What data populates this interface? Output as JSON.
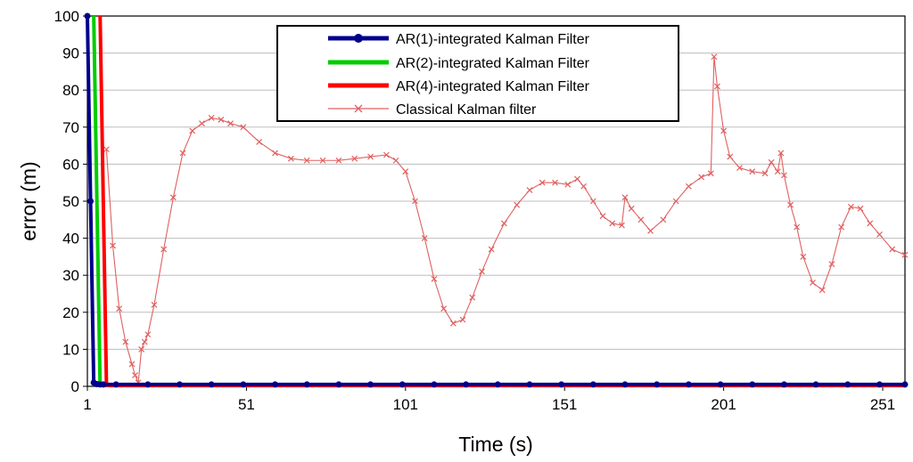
{
  "chart_data": {
    "type": "line",
    "title": "",
    "xlabel": "Time (s)",
    "ylabel": "error (m)",
    "xlim": [
      1,
      258
    ],
    "ylim": [
      0,
      100
    ],
    "xticks": [
      1,
      51,
      101,
      151,
      201,
      251
    ],
    "yticks": [
      0,
      10,
      20,
      30,
      40,
      50,
      60,
      70,
      80,
      90,
      100
    ],
    "grid": "horizontal",
    "legend_position": "top-center",
    "series": [
      {
        "name": "AR(1)-integrated Kalman Filter",
        "color": "#00008B",
        "style": "thick-line-dot-markers",
        "x": [
          1,
          2,
          3,
          4,
          5,
          6,
          10,
          20,
          30,
          40,
          50,
          60,
          70,
          80,
          90,
          100,
          110,
          120,
          130,
          140,
          150,
          160,
          170,
          180,
          190,
          200,
          210,
          220,
          230,
          240,
          250,
          258
        ],
        "y": [
          100,
          50,
          1,
          0.6,
          0.5,
          0.5,
          0.5,
          0.5,
          0.5,
          0.5,
          0.5,
          0.5,
          0.5,
          0.5,
          0.5,
          0.5,
          0.5,
          0.5,
          0.5,
          0.5,
          0.5,
          0.5,
          0.5,
          0.5,
          0.5,
          0.5,
          0.5,
          0.5,
          0.5,
          0.5,
          0.5,
          0.5
        ]
      },
      {
        "name": "AR(2)-integrated Kalman Filter",
        "color": "#00CC00",
        "style": "thick-line",
        "x": [
          3,
          4,
          5,
          6,
          10,
          20,
          40,
          60,
          80,
          100,
          120,
          140,
          160,
          180,
          200,
          220,
          240,
          258
        ],
        "y": [
          100,
          50,
          0.3,
          0.2,
          0.2,
          0.2,
          0.2,
          0.2,
          0.2,
          0.2,
          0.2,
          0.2,
          0.2,
          0.2,
          0.2,
          0.2,
          0.2,
          0.2
        ]
      },
      {
        "name": "AR(4)-integrated Kalman Filter",
        "color": "#FF0000",
        "style": "thick-line",
        "x": [
          5,
          6,
          7,
          8,
          10,
          20,
          40,
          60,
          80,
          100,
          120,
          140,
          160,
          180,
          200,
          220,
          240,
          258
        ],
        "y": [
          100,
          50,
          0.3,
          0.2,
          0.2,
          0.2,
          0.2,
          0.2,
          0.2,
          0.2,
          0.2,
          0.2,
          0.2,
          0.2,
          0.2,
          0.2,
          0.2,
          0.2
        ]
      },
      {
        "name": "Classical Kalman filter",
        "color": "#E06060",
        "style": "thin-line-x-markers",
        "x": [
          7,
          9,
          11,
          13,
          15,
          16,
          17,
          18,
          19,
          20,
          22,
          25,
          28,
          31,
          34,
          37,
          40,
          43,
          46,
          50,
          55,
          60,
          65,
          70,
          75,
          80,
          85,
          90,
          95,
          98,
          101,
          104,
          107,
          110,
          113,
          116,
          119,
          122,
          125,
          128,
          132,
          136,
          140,
          144,
          148,
          152,
          155,
          157,
          160,
          163,
          166,
          169,
          170,
          172,
          175,
          178,
          182,
          186,
          190,
          194,
          197,
          198,
          199,
          201,
          203,
          206,
          210,
          214,
          216,
          218,
          219,
          220,
          222,
          224,
          226,
          229,
          232,
          235,
          238,
          241,
          244,
          247,
          250,
          254,
          258
        ],
        "y": [
          64,
          38,
          21,
          12,
          6,
          3,
          1,
          10,
          12,
          14,
          22,
          37,
          51,
          63,
          69,
          71,
          72.5,
          72,
          71,
          70,
          66,
          63,
          61.5,
          61,
          61,
          61,
          61.5,
          62,
          62.5,
          61,
          58,
          50,
          40,
          29,
          21,
          17,
          18,
          24,
          31,
          37,
          44,
          49,
          53,
          55,
          55,
          54.5,
          56,
          54,
          50,
          46,
          44,
          43.5,
          51,
          48,
          45,
          42,
          45,
          50,
          54,
          56.5,
          57.5,
          89,
          81,
          69,
          62,
          59,
          58,
          57.5,
          60.5,
          58,
          63,
          57,
          49,
          43,
          35,
          28,
          26,
          33,
          43,
          48.5,
          48,
          44,
          41,
          37,
          35.5
        ]
      }
    ]
  }
}
